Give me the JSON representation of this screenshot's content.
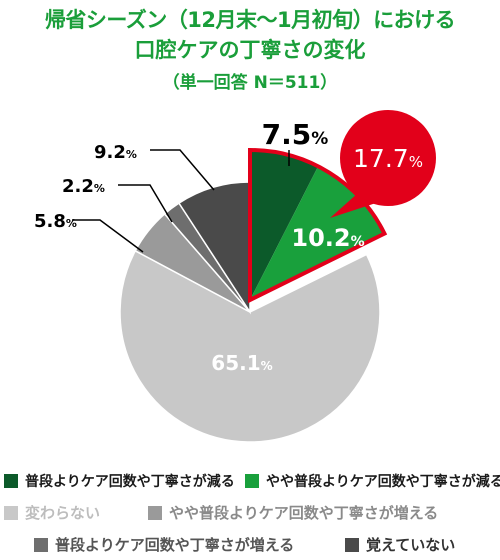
{
  "title_lines": [
    "帰省シーズン（12月末〜1月初旬）における",
    "口腔ケアの丁寧さの変化",
    "（単一回答 N＝511）"
  ],
  "chart_data": {
    "type": "pie",
    "title": "帰省シーズン（12月末〜1月初旬）における口腔ケアの丁寧さの変化",
    "subtitle": "（単一回答 N＝511）",
    "unit": "%",
    "slices": [
      {
        "name": "普段よりケア回数や丁寧さが減る",
        "value": 7.5,
        "label": "7.5",
        "color": "#0c5a2a",
        "exploded": true
      },
      {
        "name": "やや普段よりケア回数や丁寧さが減る",
        "value": 10.2,
        "label": "10.2",
        "color": "#19a03c",
        "exploded": true
      },
      {
        "name": "変わらない",
        "value": 65.1,
        "label": "65.1",
        "color": "#c8c8c8",
        "exploded": false
      },
      {
        "name": "やや普段よりケア回数や丁寧さが増える",
        "value": 5.8,
        "label": "5.8",
        "color": "#9a9a9a",
        "exploded": false
      },
      {
        "name": "普段よりケア回数や丁寧さが増える",
        "value": 2.2,
        "label": "2.2",
        "color": "#6e6e6e",
        "exploded": false
      },
      {
        "name": "覚えていない",
        "value": 9.2,
        "label": "9.2",
        "color": "#4a4a4a",
        "exploded": false
      }
    ],
    "callout": {
      "label": "17.7",
      "color": "#e2001a"
    },
    "legend_position": "bottom"
  }
}
